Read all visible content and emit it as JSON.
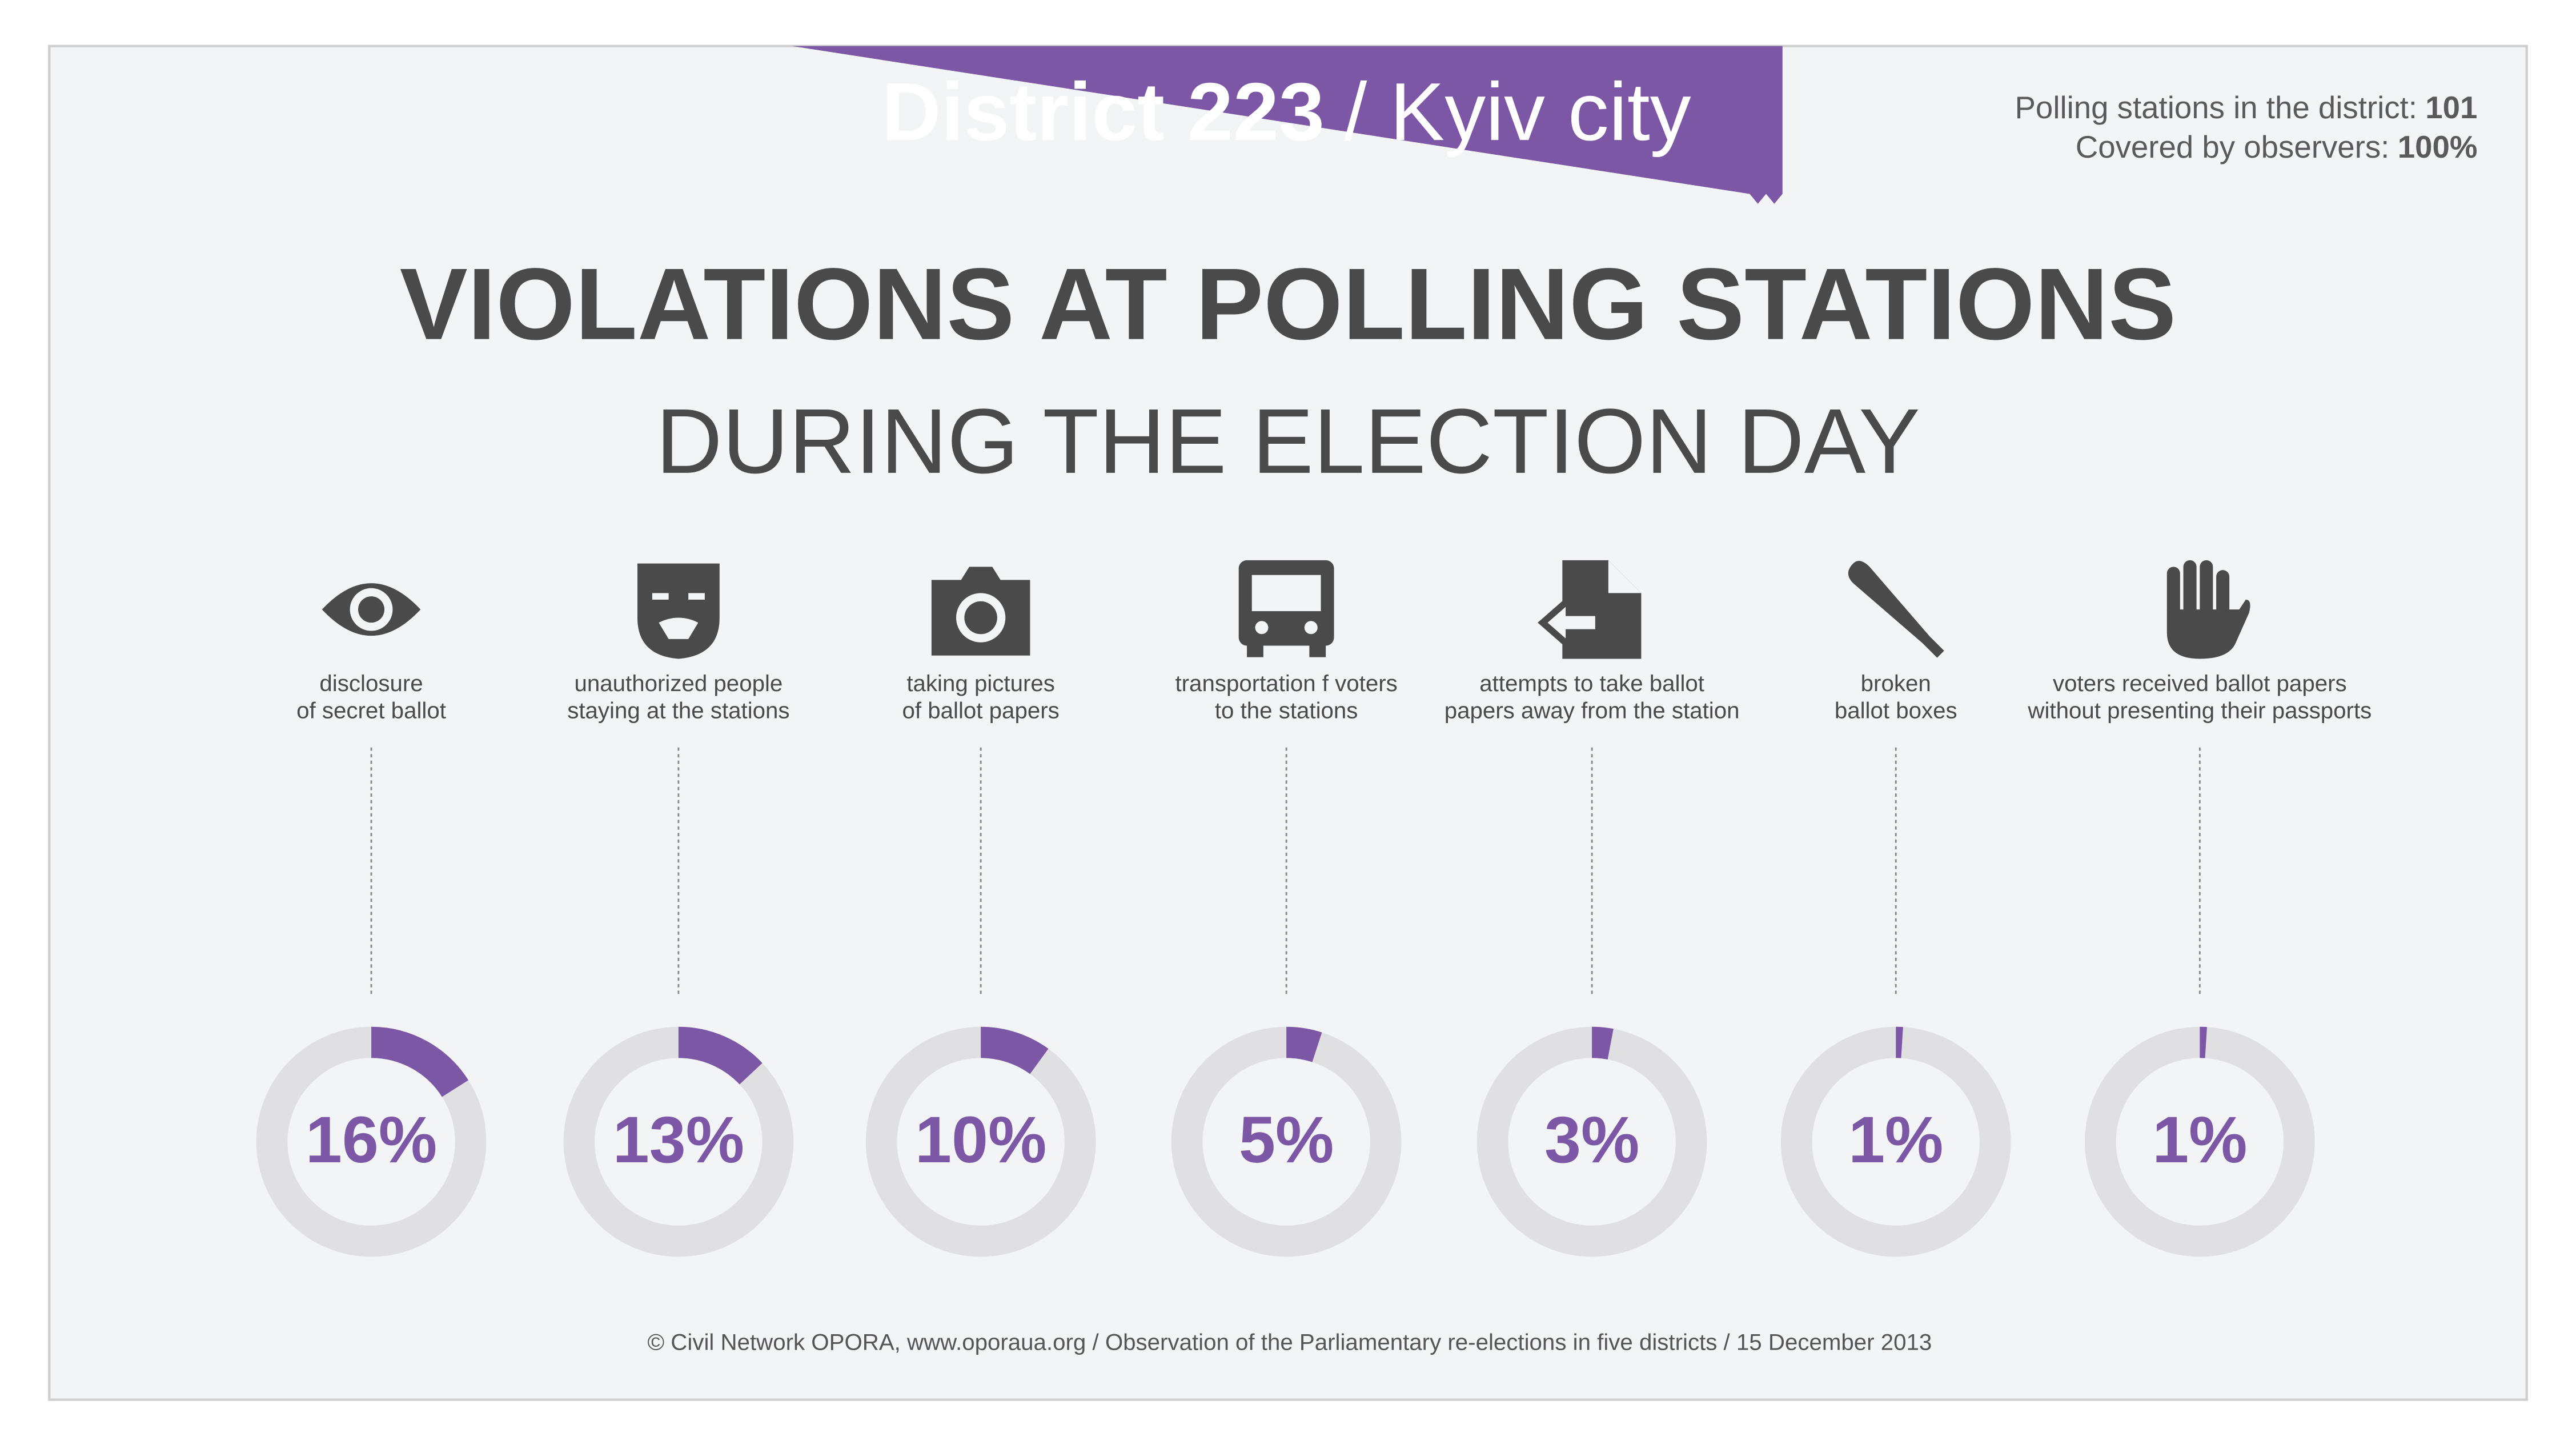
{
  "header": {
    "district": "District 223",
    "city": "/ Kyiv city",
    "stations_label": "Polling stations in the district:",
    "stations_value": "101",
    "coverage_label": "Covered by observers:",
    "coverage_value": "100%"
  },
  "chart_data": {
    "type": "donut",
    "title": "VIOLATIONS AT POLLING STATIONS",
    "subtitle": "DURING THE ELECTION DAY",
    "categories": [
      [
        "disclosure",
        "of secret ballot"
      ],
      [
        "unauthorized people",
        "staying at the stations"
      ],
      [
        "taking pictures",
        "of ballot papers"
      ],
      [
        "transportation f voters",
        "to the stations"
      ],
      [
        "attempts to take ballot",
        "papers away from the station"
      ],
      [
        "broken",
        "ballot boxes"
      ],
      [
        "voters received ballot papers",
        "without presenting their passports"
      ]
    ],
    "values": [
      16,
      13,
      10,
      5,
      3,
      1,
      1
    ],
    "value_labels": [
      "16%",
      "13%",
      "10%",
      "5%",
      "3%",
      "1%",
      "1%"
    ],
    "color": "#7b57a6",
    "track_color": "#e0e0e3"
  },
  "footer": "© Civil Network OPORA, www.oporaua.org / Observation of the Parliamentary re-elections  in five districts / 15 December 2013"
}
